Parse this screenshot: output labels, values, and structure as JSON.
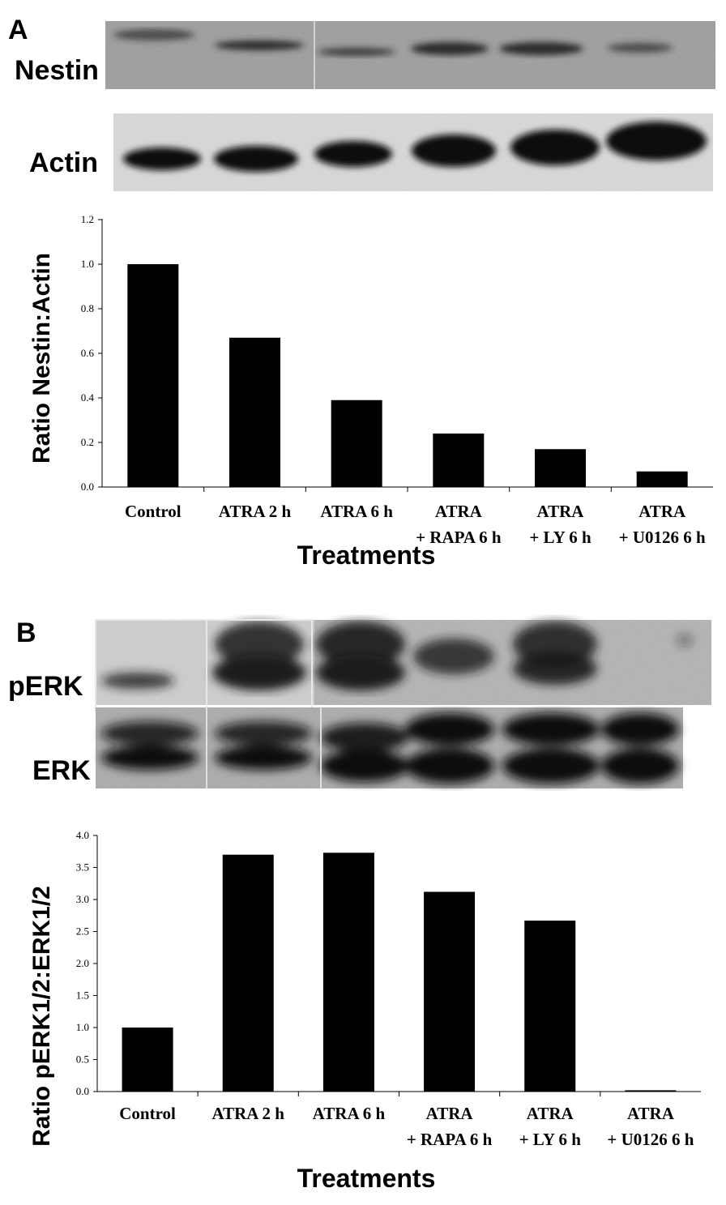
{
  "panel_a": {
    "letter": "A",
    "blot_labels": {
      "top": "Nestin",
      "bottom": "Actin"
    }
  },
  "panel_b": {
    "letter": "B",
    "blot_labels": {
      "top": "pERK",
      "bottom": "ERK"
    }
  },
  "chart_data": [
    {
      "type": "bar",
      "panel": "A",
      "categories": [
        [
          "Control"
        ],
        [
          "ATRA 2 h"
        ],
        [
          "ATRA 6 h"
        ],
        [
          "ATRA",
          "+ RAPA 6 h"
        ],
        [
          "ATRA",
          "+ LY 6 h"
        ],
        [
          "ATRA",
          "+ U0126 6 h"
        ]
      ],
      "values": [
        1.0,
        0.67,
        0.39,
        0.24,
        0.17,
        0.07
      ],
      "ylabel": "Ratio Nestin:Actin",
      "xlabel": "Treatments",
      "ylim": [
        0,
        1.2
      ],
      "yticks": [
        "0.0",
        "0.2",
        "0.4",
        "0.6",
        "0.8",
        "1.0",
        "1.2"
      ],
      "bar_color": "#000000",
      "grid": false
    },
    {
      "type": "bar",
      "panel": "B",
      "categories": [
        [
          "Control"
        ],
        [
          "ATRA 2 h"
        ],
        [
          "ATRA 6 h"
        ],
        [
          "ATRA",
          "+ RAPA 6 h"
        ],
        [
          "ATRA",
          "+ LY 6 h"
        ],
        [
          "ATRA",
          "+ U0126 6 h"
        ]
      ],
      "values": [
        1.0,
        3.7,
        3.73,
        3.12,
        2.67,
        0.02
      ],
      "ylabel": "Ratio pERK1/2:ERK1/2",
      "xlabel": "Treatments",
      "ylim": [
        0,
        4.0
      ],
      "yticks": [
        "0.0",
        "0.5",
        "1.0",
        "1.5",
        "2.0",
        "2.5",
        "3.0",
        "3.5",
        "4.0"
      ],
      "bar_color": "#000000",
      "grid": false
    }
  ]
}
